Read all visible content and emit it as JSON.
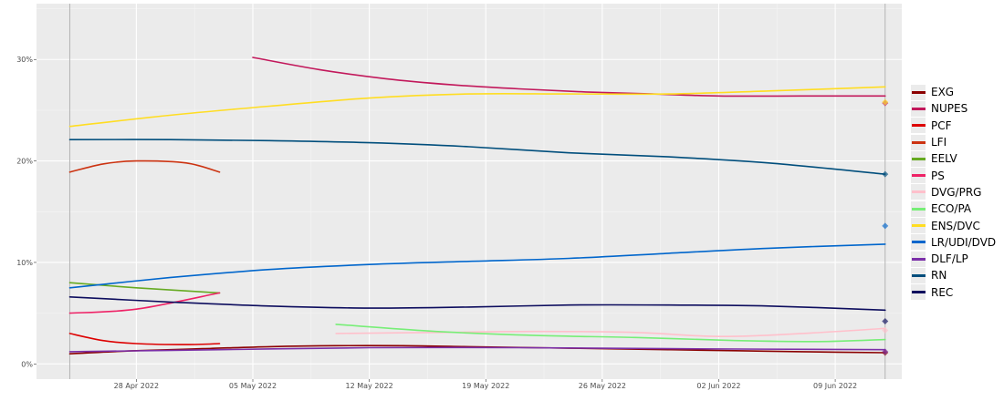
{
  "chart_data": {
    "type": "line",
    "title": "",
    "xlabel": "",
    "ylabel": "",
    "x_range": [
      "2022-04-22",
      "2022-06-13"
    ],
    "ylim": [
      -1.5,
      35.5
    ],
    "x_ticks": [
      {
        "date": "2022-04-28",
        "label": "28 Apr 2022"
      },
      {
        "date": "2022-05-05",
        "label": "05 May 2022"
      },
      {
        "date": "2022-05-12",
        "label": "12 May 2022"
      },
      {
        "date": "2022-05-19",
        "label": "19 May 2022"
      },
      {
        "date": "2022-05-26",
        "label": "26 May 2022"
      },
      {
        "date": "2022-06-02",
        "label": "02 Jun 2022"
      },
      {
        "date": "2022-06-09",
        "label": "09 Jun 2022"
      }
    ],
    "y_ticks": [
      {
        "value": 0,
        "label": "0%"
      },
      {
        "value": 10,
        "label": "10%"
      },
      {
        "value": 20,
        "label": "20%"
      },
      {
        "value": 30,
        "label": "30%"
      }
    ],
    "vlines": [
      "2022-04-24",
      "2022-06-12"
    ],
    "grid": true,
    "legend_position": "right",
    "series": [
      {
        "name": "EXG",
        "color": "#8b0000",
        "x": [
          "2022-04-24",
          "2022-04-28",
          "2022-05-02",
          "2022-05-06",
          "2022-05-10",
          "2022-05-14",
          "2022-05-18",
          "2022-05-22",
          "2022-05-26",
          "2022-05-30",
          "2022-06-03",
          "2022-06-07",
          "2022-06-12"
        ],
        "y": [
          1.0,
          1.3,
          1.5,
          1.7,
          1.8,
          1.8,
          1.7,
          1.6,
          1.5,
          1.4,
          1.3,
          1.2,
          1.1
        ],
        "result": 1.1
      },
      {
        "name": "NUPES",
        "color": "#c2185b",
        "x": [
          "2022-05-05",
          "2022-05-09",
          "2022-05-13",
          "2022-05-17",
          "2022-05-21",
          "2022-05-25",
          "2022-05-29",
          "2022-06-02",
          "2022-06-07",
          "2022-06-12"
        ],
        "y": [
          30.2,
          29.0,
          28.1,
          27.5,
          27.1,
          26.8,
          26.6,
          26.4,
          26.4,
          26.4
        ],
        "result": 25.7
      },
      {
        "name": "PCF",
        "color": "#dd0000",
        "x": [
          "2022-04-24",
          "2022-04-26",
          "2022-04-28",
          "2022-05-01",
          "2022-05-03"
        ],
        "y": [
          3.0,
          2.3,
          2.0,
          1.9,
          2.0
        ]
      },
      {
        "name": "LFI",
        "color": "#cc3311",
        "x": [
          "2022-04-24",
          "2022-04-26",
          "2022-04-28",
          "2022-05-01",
          "2022-05-03"
        ],
        "y": [
          18.9,
          19.7,
          20.0,
          19.8,
          18.9
        ]
      },
      {
        "name": "EELV",
        "color": "#66aa22",
        "x": [
          "2022-04-24",
          "2022-04-28",
          "2022-05-03"
        ],
        "y": [
          8.0,
          7.5,
          7.0
        ]
      },
      {
        "name": "PS",
        "color": "#ee2266",
        "x": [
          "2022-04-24",
          "2022-04-28",
          "2022-05-03"
        ],
        "y": [
          5.0,
          5.4,
          7.0
        ]
      },
      {
        "name": "DVG/PRG",
        "color": "#ffc0cb",
        "x": [
          "2022-05-10",
          "2022-05-16",
          "2022-05-22",
          "2022-05-28",
          "2022-06-02",
          "2022-06-07",
          "2022-06-12"
        ],
        "y": [
          3.0,
          3.1,
          3.2,
          3.1,
          2.7,
          3.0,
          3.5
        ],
        "result": 3.3
      },
      {
        "name": "ECO/PA",
        "color": "#77ee77",
        "x": [
          "2022-05-10",
          "2022-05-16",
          "2022-05-22",
          "2022-05-28",
          "2022-06-03",
          "2022-06-08",
          "2022-06-12"
        ],
        "y": [
          3.9,
          3.2,
          2.8,
          2.6,
          2.3,
          2.2,
          2.4
        ]
      },
      {
        "name": "ENS/DVC",
        "color": "#ffdd22",
        "x": [
          "2022-04-24",
          "2022-04-30",
          "2022-05-06",
          "2022-05-12",
          "2022-05-18",
          "2022-05-24",
          "2022-05-30",
          "2022-06-05",
          "2022-06-12"
        ],
        "y": [
          23.4,
          24.5,
          25.4,
          26.2,
          26.6,
          26.6,
          26.6,
          26.9,
          27.3
        ],
        "result": 25.8
      },
      {
        "name": "LR/UDI/DVD",
        "color": "#0066cc",
        "x": [
          "2022-04-24",
          "2022-04-30",
          "2022-05-06",
          "2022-05-12",
          "2022-05-18",
          "2022-05-24",
          "2022-05-30",
          "2022-06-05",
          "2022-06-12"
        ],
        "y": [
          7.5,
          8.5,
          9.3,
          9.8,
          10.1,
          10.4,
          10.9,
          11.4,
          11.8
        ],
        "result": 13.6
      },
      {
        "name": "DLF/LP",
        "color": "#7b2fa8",
        "x": [
          "2022-04-24",
          "2022-05-03",
          "2022-05-12",
          "2022-05-21",
          "2022-05-30",
          "2022-06-12"
        ],
        "y": [
          1.2,
          1.4,
          1.6,
          1.6,
          1.5,
          1.4
        ],
        "result": 1.2
      },
      {
        "name": "RN",
        "color": "#004e7c",
        "x": [
          "2022-04-24",
          "2022-04-30",
          "2022-05-06",
          "2022-05-12",
          "2022-05-18",
          "2022-05-24",
          "2022-05-30",
          "2022-06-05",
          "2022-06-12"
        ],
        "y": [
          22.1,
          22.1,
          22.0,
          21.8,
          21.4,
          20.8,
          20.4,
          19.8,
          18.7
        ],
        "result": 18.7
      },
      {
        "name": "REC",
        "color": "#0d0d5e",
        "x": [
          "2022-04-24",
          "2022-04-30",
          "2022-05-06",
          "2022-05-12",
          "2022-05-18",
          "2022-05-24",
          "2022-05-30",
          "2022-06-05",
          "2022-06-12"
        ],
        "y": [
          6.6,
          6.1,
          5.7,
          5.5,
          5.6,
          5.8,
          5.8,
          5.7,
          5.3
        ],
        "result": 4.2
      }
    ]
  }
}
